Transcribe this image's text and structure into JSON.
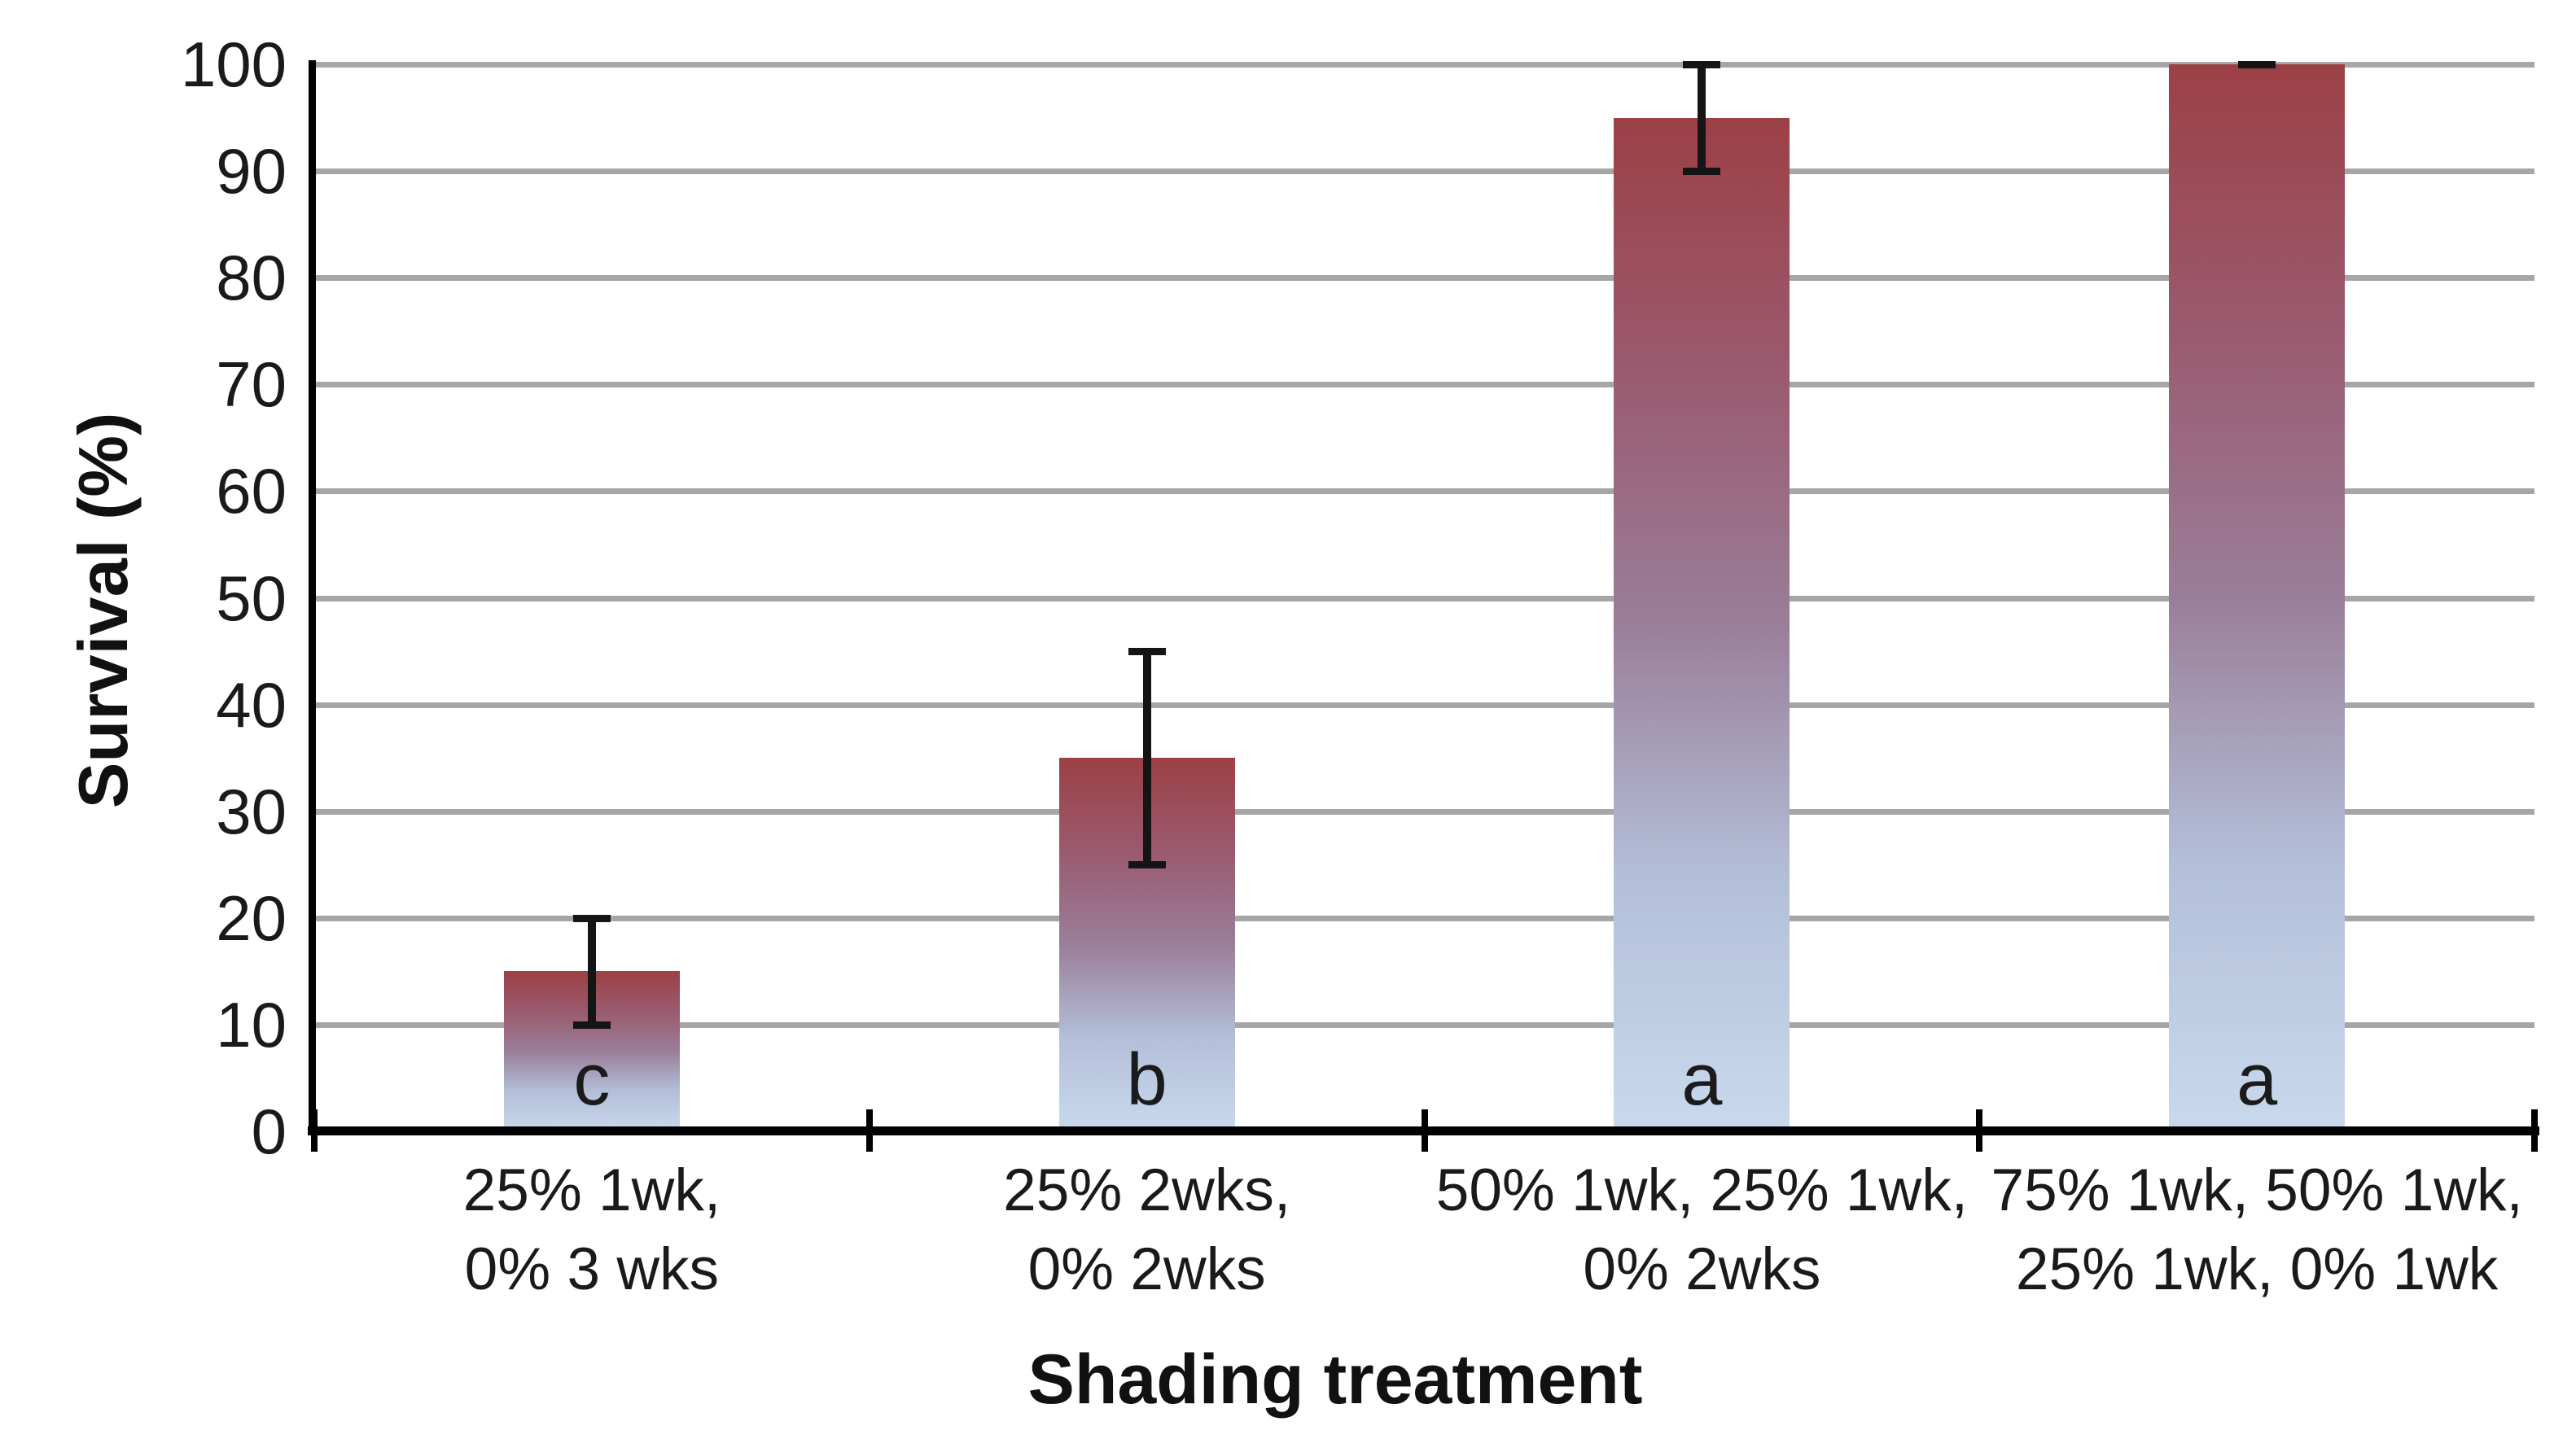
{
  "chart_data": {
    "type": "bar",
    "title": "",
    "xlabel": "Shading treatment",
    "ylabel": "Survival (%)",
    "ylim": [
      0,
      100
    ],
    "yticks": [
      0,
      10,
      20,
      30,
      40,
      50,
      60,
      70,
      80,
      90,
      100
    ],
    "grid": "horizontal-gray-lines",
    "legend": "none",
    "categories": [
      "25% 1wk,\n0% 3 wks",
      "25% 2wks,\n0% 2wks",
      "50% 1wk, 25% 1wk,\n0% 2wks",
      "75% 1wk, 50% 1wk,\n25% 1wk, 0% 1wk"
    ],
    "values": [
      15,
      35,
      95,
      100
    ],
    "error_low": [
      10,
      25,
      90,
      100
    ],
    "error_high": [
      20,
      45,
      100,
      100
    ],
    "sig_letters": [
      "c",
      "b",
      "a",
      "a"
    ],
    "bar_gradient": [
      "#9c4045",
      "#9a7e99",
      "#c9d9ed"
    ],
    "gridline_color": "#a6a6a6",
    "axis_color": "#000000",
    "error_bar_color": "#151515",
    "text_color": "#1a1a1a"
  }
}
